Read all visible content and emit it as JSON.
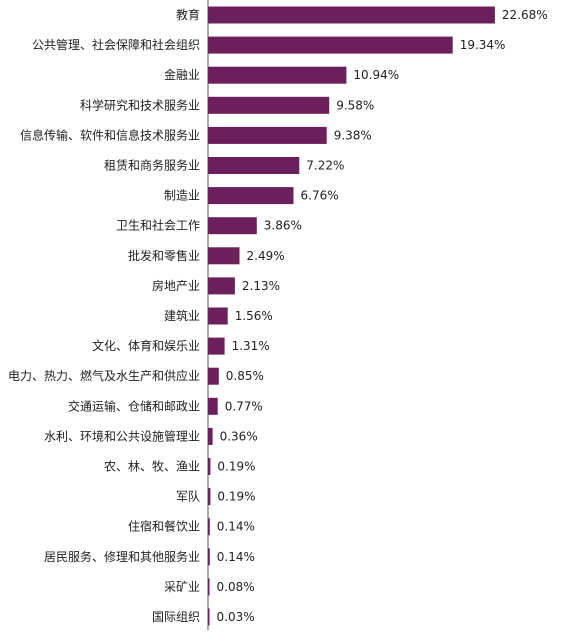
{
  "colors": {
    "bar": "#6b1f5c",
    "axis": "#555555",
    "text": "#222222"
  },
  "chart_data": {
    "type": "bar",
    "orientation": "horizontal",
    "title": "",
    "xlabel": "",
    "ylabel": "",
    "xlim": [
      0,
      27
    ],
    "grid": false,
    "legend": "none",
    "categories": [
      "教育",
      "公共管理、社会保障和社会组织",
      "金融业",
      "科学研究和技术服务业",
      "信息传输、软件和信息技术服务业",
      "租赁和商务服务业",
      "制造业",
      "卫生和社会工作",
      "批发和零售业",
      "房地产业",
      "建筑业",
      "文化、体育和娱乐业",
      "电力、热力、燃气及水生产和供应业",
      "交通运输、仓储和邮政业",
      "水利、环境和公共设施管理业",
      "农、林、牧、渔业",
      "军队",
      "住宿和餐饮业",
      "居民服务、修理和其他服务业",
      "采矿业",
      "国际组织"
    ],
    "values": [
      22.68,
      19.34,
      10.94,
      9.58,
      9.38,
      7.22,
      6.76,
      3.86,
      2.49,
      2.13,
      1.56,
      1.31,
      0.85,
      0.77,
      0.36,
      0.19,
      0.19,
      0.14,
      0.14,
      0.08,
      0.03
    ],
    "value_labels": [
      "22.68%",
      "19.34%",
      "10.94%",
      "9.58%",
      "9.38%",
      "7.22%",
      "6.76%",
      "3.86%",
      "2.49%",
      "2.13%",
      "1.56%",
      "1.31%",
      "0.85%",
      "0.77%",
      "0.36%",
      "0.19%",
      "0.19%",
      "0.14%",
      "0.14%",
      "0.08%",
      "0.03%"
    ]
  }
}
